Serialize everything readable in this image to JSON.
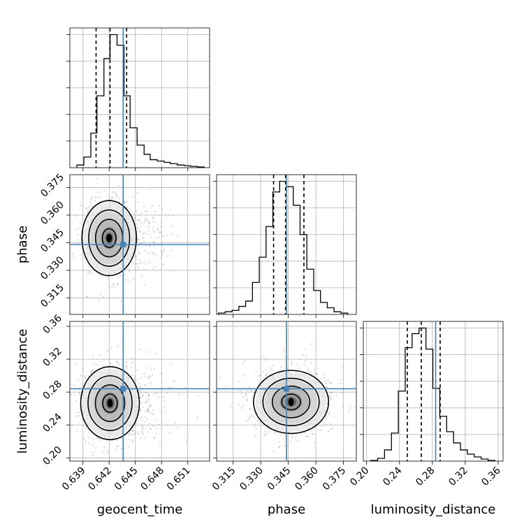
{
  "chart_data": {
    "type": "corner",
    "parameters": [
      "geocent_time",
      "phase",
      "luminosity_distance"
    ],
    "ranges": {
      "geocent_time": [
        0.6375,
        0.6535
      ],
      "phase": [
        0.306,
        0.382
      ],
      "luminosity_distance": [
        0.196,
        0.366
      ]
    },
    "ticks": {
      "geocent_time": [
        "0.639",
        "0.642",
        "0.645",
        "0.648",
        "0.651"
      ],
      "phase": [
        "0.315",
        "0.330",
        "0.345",
        "0.360",
        "0.375"
      ],
      "luminosity_distance": [
        "0.20",
        "0.24",
        "0.28",
        "0.32",
        "0.36"
      ]
    },
    "y_ticks": {
      "phase": [
        "0.315",
        "0.330",
        "0.345",
        "0.360",
        "0.375"
      ],
      "luminosity_distance": [
        "0.20",
        "0.24",
        "0.28",
        "0.32",
        "0.36"
      ]
    },
    "truths": {
      "geocent_time": 0.6436,
      "phase": 0.344,
      "luminosity_distance": 0.284
    },
    "quantiles": {
      "geocent_time": [
        0.6405,
        0.6421,
        0.644
      ],
      "phase": [
        0.337,
        0.3435,
        0.3535
      ],
      "luminosity_distance": [
        0.2495,
        0.2665,
        0.2895
      ]
    },
    "histograms": {
      "geocent_time": {
        "edges": [
          0.6383,
          0.6391,
          0.6399,
          0.6406,
          0.6414,
          0.6421,
          0.6429,
          0.6437,
          0.6444,
          0.6452,
          0.646,
          0.6467,
          0.6475,
          0.6483,
          0.649,
          0.6498,
          0.6506,
          0.6513,
          0.6521,
          0.6529
        ],
        "counts": [
          0.02,
          0.08,
          0.26,
          0.54,
          0.82,
          1.0,
          0.92,
          0.54,
          0.3,
          0.17,
          0.1,
          0.06,
          0.05,
          0.04,
          0.03,
          0.02,
          0.015,
          0.01,
          0.005
        ]
      },
      "phase": {
        "edges": [
          0.307,
          0.3107,
          0.3144,
          0.3181,
          0.3218,
          0.3255,
          0.3292,
          0.3329,
          0.3366,
          0.3403,
          0.344,
          0.3477,
          0.3514,
          0.3551,
          0.3588,
          0.3625,
          0.3662,
          0.3699,
          0.3736,
          0.3773
        ],
        "counts": [
          0.01,
          0.02,
          0.03,
          0.06,
          0.1,
          0.24,
          0.43,
          0.66,
          0.92,
          1.0,
          0.96,
          0.82,
          0.6,
          0.34,
          0.18,
          0.09,
          0.05,
          0.02,
          0.01
        ]
      },
      "luminosity_distance": {
        "edges": [
          0.205,
          0.2134,
          0.2218,
          0.2302,
          0.2386,
          0.247,
          0.2554,
          0.2638,
          0.2722,
          0.2806,
          0.289,
          0.2974,
          0.3058,
          0.3142,
          0.3226,
          0.331,
          0.3394,
          0.3478,
          0.3562
        ],
        "counts": [
          0.005,
          0.02,
          0.08,
          0.2,
          0.5,
          0.81,
          0.91,
          0.95,
          0.8,
          0.52,
          0.32,
          0.21,
          0.13,
          0.08,
          0.05,
          0.03,
          0.015,
          0.005
        ]
      }
    },
    "posterior_2d": {
      "phase_vs_geocent_time": {
        "center": [
          0.642,
          0.3475
        ],
        "contour_sigmas": [
          0.5,
          1.0,
          1.5,
          2.0
        ],
        "sigma": [
          0.0013,
          0.0085
        ]
      },
      "luminosity_distance_vs_geocent_time": {
        "center": [
          0.6421,
          0.2665
        ],
        "contour_sigmas": [
          0.5,
          1.0,
          1.5,
          2.0
        ],
        "sigma": [
          0.0014,
          0.0185
        ]
      },
      "luminosity_distance_vs_phase": {
        "center": [
          0.3465,
          0.268
        ],
        "contour_sigmas": [
          0.5,
          1.0,
          1.5,
          2.0
        ],
        "sigma": [
          0.0085,
          0.016
        ]
      }
    },
    "grid": true,
    "colors": {
      "truth": "#4682b4",
      "hist": "#000000",
      "points": "#b4b4b4"
    }
  }
}
